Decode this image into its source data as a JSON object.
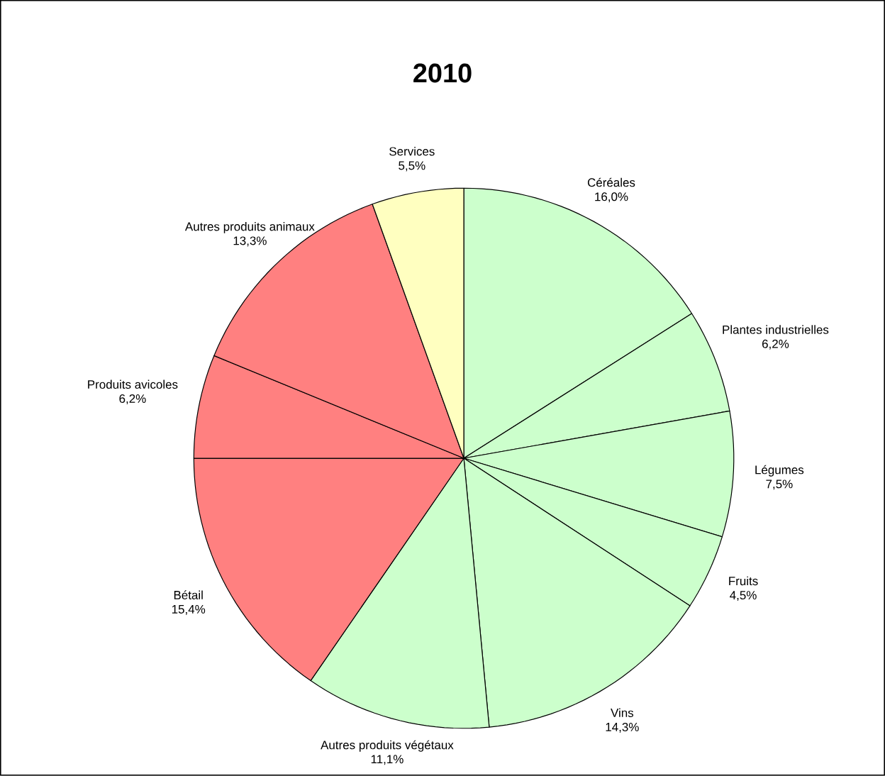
{
  "chart_data": {
    "type": "pie",
    "title": "2010",
    "categories": [
      "Céréales",
      "Plantes industrielles",
      "Légumes",
      "Fruits",
      "Vins",
      "Autres produits végétaux",
      "Bétail",
      "Produits avicoles",
      "Autres produits animaux",
      "Services"
    ],
    "values": [
      16.0,
      6.2,
      7.5,
      4.5,
      14.3,
      11.1,
      15.4,
      6.2,
      13.3,
      5.5
    ],
    "value_labels": [
      "16,0%",
      "6,2%",
      "7,5%",
      "4,5%",
      "14,3%",
      "11,1%",
      "15,4%",
      "6,2%",
      "13,3%",
      "5,5%"
    ],
    "colors": [
      "#ccffcc",
      "#ccffcc",
      "#ccffcc",
      "#ccffcc",
      "#ccffcc",
      "#ccffcc",
      "#ff8080",
      "#ff8080",
      "#ff8080",
      "#ffffc0"
    ]
  }
}
